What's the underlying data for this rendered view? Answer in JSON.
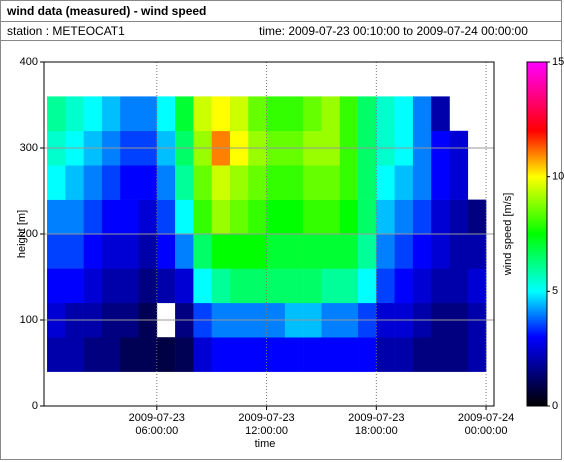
{
  "title": "wind data (measured) - wind speed",
  "station": "station : METEOCAT1",
  "time_range": "time: 2009-07-23 00:10:00 to 2009-07-24 00:00:00",
  "chart_data": {
    "type": "heatmap",
    "x_label": "time",
    "y_label": "height [m]",
    "colorbar_label": "wind speed [m/s]",
    "time_bins": [
      "2009-07-23T00:00",
      "2009-07-23T01:00",
      "2009-07-23T02:00",
      "2009-07-23T03:00",
      "2009-07-23T04:00",
      "2009-07-23T05:00",
      "2009-07-23T06:00",
      "2009-07-23T07:00",
      "2009-07-23T08:00",
      "2009-07-23T09:00",
      "2009-07-23T10:00",
      "2009-07-23T11:00",
      "2009-07-23T12:00",
      "2009-07-23T13:00",
      "2009-07-23T14:00",
      "2009-07-23T15:00",
      "2009-07-23T16:00",
      "2009-07-23T17:00",
      "2009-07-23T18:00",
      "2009-07-23T19:00",
      "2009-07-23T20:00",
      "2009-07-23T21:00",
      "2009-07-23T22:00",
      "2009-07-23T23:00",
      "2009-07-24T00:00"
    ],
    "height_bins": [
      40,
      80,
      120,
      160,
      200,
      240,
      280,
      320,
      360
    ],
    "values": [
      [
        2,
        2,
        1.5,
        1.5,
        1,
        1,
        0.8,
        1,
        2.5,
        3,
        3,
        3,
        3,
        3,
        3,
        3,
        3,
        3,
        2,
        2,
        1.5,
        1.5,
        1.5,
        2
      ],
      [
        2.5,
        2,
        2,
        1.5,
        1.5,
        1,
        null,
        1.5,
        3.5,
        4,
        4,
        4,
        4,
        4.5,
        4.5,
        4,
        4,
        3.5,
        2.5,
        2.5,
        2,
        1.5,
        1.5,
        2
      ],
      [
        3,
        3,
        2.5,
        2,
        2,
        1.5,
        2,
        2.5,
        5,
        6,
        6.5,
        6.5,
        6.5,
        6.5,
        6.5,
        6,
        6,
        5,
        3.5,
        3,
        2.5,
        2,
        2,
        2.5
      ],
      [
        3.5,
        3.5,
        3,
        2.5,
        2.5,
        2,
        3,
        4,
        6.5,
        7.5,
        7.5,
        7.5,
        7,
        7,
        7,
        7,
        7,
        6,
        4,
        3.5,
        3,
        2.5,
        2,
        2
      ],
      [
        4,
        4,
        3.5,
        3,
        3,
        2.5,
        3.5,
        5,
        8,
        9,
        8.5,
        8,
        7.5,
        7.5,
        8,
        8,
        7.5,
        6.5,
        4.5,
        4,
        3.5,
        2.5,
        2,
        1.5
      ],
      [
        5,
        4.5,
        4,
        3.5,
        3,
        3,
        4,
        6,
        8.5,
        9.5,
        9,
        8.5,
        8,
        8,
        8.5,
        8.5,
        8,
        6.5,
        5,
        4.5,
        4,
        3,
        2.5,
        null
      ],
      [
        5.5,
        5,
        4.5,
        4,
        3.5,
        3.5,
        4.5,
        6.5,
        9,
        11,
        10,
        9,
        8.5,
        8.5,
        9,
        9,
        8,
        6.5,
        5.5,
        5,
        4,
        3,
        2.5,
        null
      ],
      [
        6,
        5.5,
        5,
        4.5,
        4,
        4,
        5,
        7,
        9.5,
        10,
        9.5,
        8.5,
        8,
        8,
        8.5,
        9,
        8,
        6.5,
        5.5,
        5,
        4,
        2,
        null,
        null
      ]
    ],
    "xlim": [
      "2009-07-22T23:50",
      "2009-07-24T00:26"
    ],
    "xticks": [
      {
        "value": "2009-07-23T06:00",
        "label": "2009-07-23 06:00:00"
      },
      {
        "value": "2009-07-23T12:00",
        "label": "2009-07-23 12:00:00"
      },
      {
        "value": "2009-07-23T18:00",
        "label": "2009-07-23 18:00:00"
      },
      {
        "value": "2009-07-24T00:00",
        "label": "2009-07-24 00:00:00"
      }
    ],
    "ylim": [
      0,
      400
    ],
    "yticks": [
      0,
      100,
      200,
      300,
      400
    ],
    "clim": [
      0,
      15
    ],
    "cticks": [
      0,
      5,
      10,
      15
    ],
    "colorscale": [
      [
        0,
        "#000000"
      ],
      [
        1.5,
        "#000080"
      ],
      [
        3,
        "#0000ff"
      ],
      [
        5,
        "#00ffff"
      ],
      [
        7.5,
        "#00ff00"
      ],
      [
        10,
        "#ffff00"
      ],
      [
        12,
        "#ff0000"
      ],
      [
        15,
        "#ff00ff"
      ]
    ],
    "grid": true
  }
}
